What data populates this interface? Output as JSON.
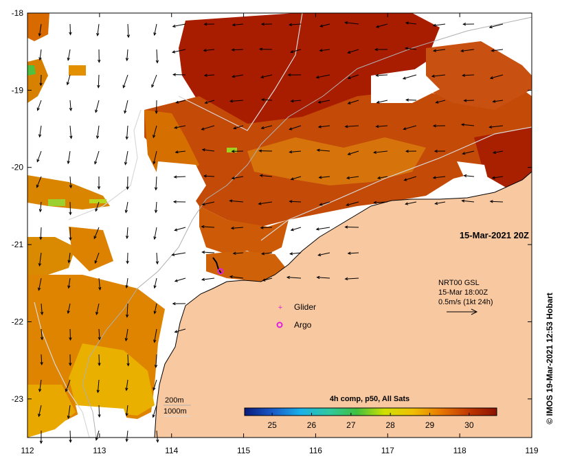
{
  "map": {
    "x_axis": {
      "ticks": [
        "112",
        "113",
        "114",
        "115",
        "116",
        "117",
        "118",
        "119"
      ]
    },
    "y_axis": {
      "ticks": [
        "-18",
        "-19",
        "-20",
        "-21",
        "-22",
        "-23"
      ]
    },
    "timestamp": "15-Mar-2021 20Z",
    "wind_legend": {
      "line1": "NRT00 GSL",
      "line2": "15-Mar 18:00Z",
      "line3": "0.5m/s (1kt 24h)"
    },
    "markers": [
      {
        "label": "Glider",
        "symbol": "+",
        "color": "#e020e0"
      },
      {
        "label": "Argo",
        "symbol": "o",
        "color": "#e020e0"
      }
    ],
    "isobath_legend": {
      "shallow": "200m",
      "deep": "1000m"
    },
    "colorbar": {
      "title": "4h comp, p50, All Sats",
      "ticks": [
        "25",
        "26",
        "27",
        "28",
        "29",
        "30"
      ],
      "range": [
        24.3,
        30.7
      ],
      "stops": [
        "#0a1a7a",
        "#1a5ac8",
        "#1ab0e8",
        "#30c8a0",
        "#40c040",
        "#d0e000",
        "#f0c000",
        "#e87800",
        "#c03800",
        "#8c1200"
      ]
    },
    "credit": "© IMOS 19-Mar-2021 12:53 Hobart",
    "colors": {
      "land": "#f8c8a0",
      "warm": "#c04000",
      "hot": "#a01800",
      "mid": "#dd7a00",
      "cool": "#e8b000"
    }
  }
}
